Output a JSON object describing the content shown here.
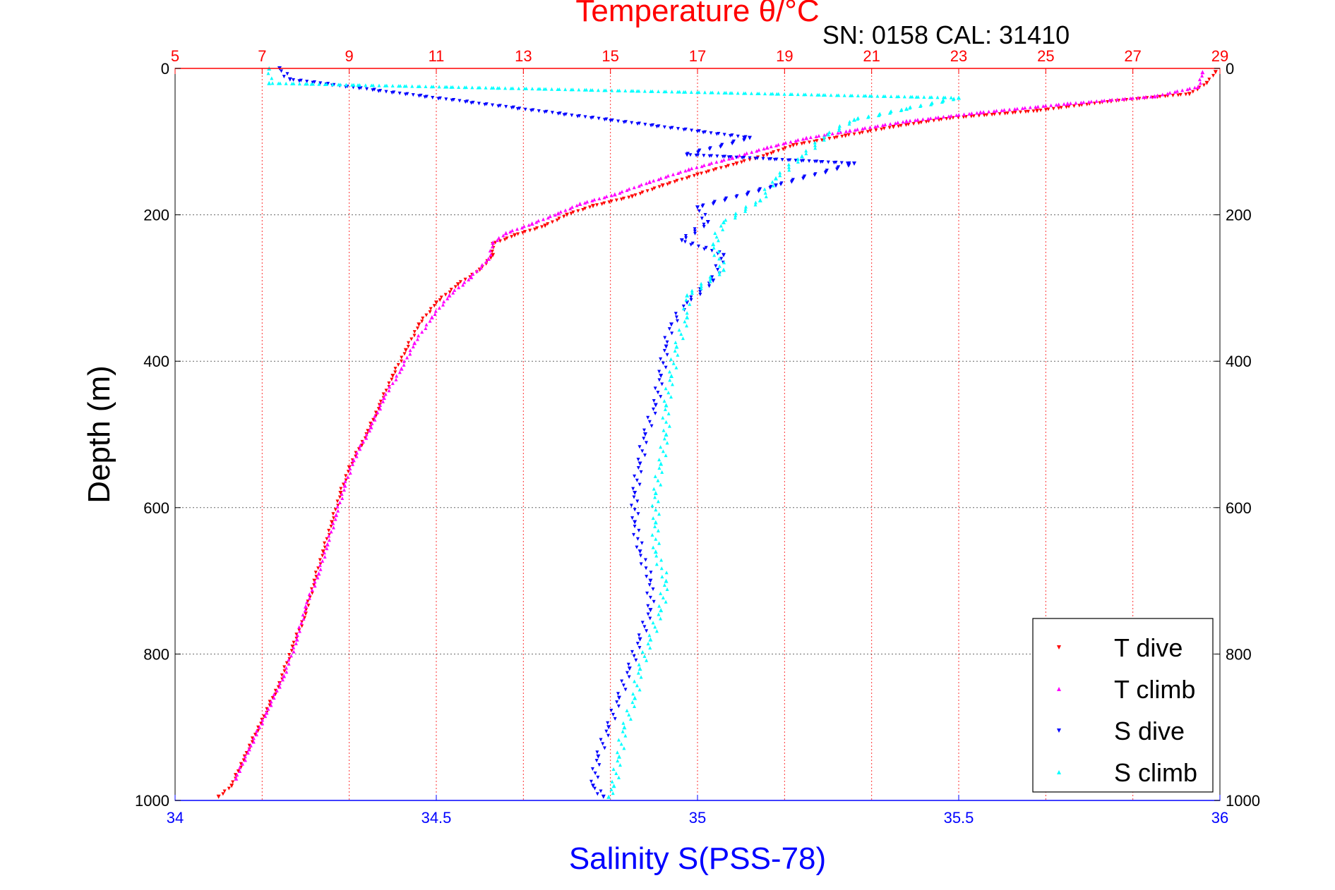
{
  "chart_data": {
    "type": "scatter",
    "title": "Temperature θ/°C",
    "subtitle": "SN: 0158  CAL: 31410",
    "xlabel_bottom": "Salinity S(PSS-78)",
    "xlabel_top": "Temperature θ/°C",
    "ylabel": "Depth (m)",
    "salinity_lim": [
      34,
      36
    ],
    "temperature_lim": [
      5,
      29
    ],
    "depth_lim": [
      0,
      1000
    ],
    "y_reversed": true,
    "grid": true,
    "legend_position": "bottom-right",
    "salinity_ticks": [
      "34",
      "34.5",
      "35",
      "35.5",
      "36"
    ],
    "temperature_ticks": [
      "5",
      "7",
      "9",
      "11",
      "13",
      "15",
      "17",
      "19",
      "21",
      "23",
      "25",
      "27",
      "29"
    ],
    "depth_ticks": [
      "0",
      "200",
      "400",
      "600",
      "800",
      "1000"
    ],
    "colors": {
      "temperature_axis": "#ff0000",
      "salinity_axis": "#0000ff",
      "T_dive": "#ff0000",
      "T_climb": "#ff00ff",
      "S_dive": "#0000ff",
      "S_climb": "#00ffff"
    },
    "series": [
      {
        "name": "T dive",
        "axis": "temperature",
        "marker": "triangle-down",
        "points": [
          [
            28.9,
            5
          ],
          [
            28.7,
            20
          ],
          [
            28.3,
            35
          ],
          [
            26.5,
            45
          ],
          [
            24.8,
            58
          ],
          [
            22.8,
            68
          ],
          [
            21.5,
            80
          ],
          [
            20.4,
            92
          ],
          [
            19.2,
            105
          ],
          [
            18.6,
            118
          ],
          [
            17.9,
            130
          ],
          [
            17.0,
            145
          ],
          [
            16.2,
            160
          ],
          [
            15.5,
            175
          ],
          [
            14.6,
            188
          ],
          [
            14.0,
            200
          ],
          [
            13.5,
            215
          ],
          [
            12.8,
            228
          ],
          [
            12.3,
            240
          ],
          [
            12.3,
            255
          ],
          [
            12.0,
            275
          ],
          [
            11.5,
            295
          ],
          [
            11.0,
            320
          ],
          [
            10.6,
            350
          ],
          [
            10.3,
            385
          ],
          [
            10.0,
            420
          ],
          [
            9.7,
            460
          ],
          [
            9.4,
            500
          ],
          [
            9.0,
            545
          ],
          [
            8.8,
            580
          ],
          [
            8.6,
            620
          ],
          [
            8.4,
            660
          ],
          [
            8.2,
            700
          ],
          [
            8.0,
            745
          ],
          [
            7.7,
            790
          ],
          [
            7.4,
            840
          ],
          [
            7.0,
            890
          ],
          [
            6.6,
            940
          ],
          [
            6.3,
            980
          ],
          [
            6.0,
            995
          ]
        ]
      },
      {
        "name": "T climb",
        "axis": "temperature",
        "marker": "triangle-up",
        "points": [
          [
            28.6,
            5
          ],
          [
            28.5,
            25
          ],
          [
            27.5,
            38
          ],
          [
            25.5,
            48
          ],
          [
            23.5,
            60
          ],
          [
            21.8,
            72
          ],
          [
            20.5,
            85
          ],
          [
            19.5,
            95
          ],
          [
            18.6,
            108
          ],
          [
            17.8,
            122
          ],
          [
            16.8,
            138
          ],
          [
            15.9,
            155
          ],
          [
            15.1,
            172
          ],
          [
            14.3,
            185
          ],
          [
            13.8,
            198
          ],
          [
            13.2,
            212
          ],
          [
            12.6,
            225
          ],
          [
            12.3,
            238
          ],
          [
            12.2,
            260
          ],
          [
            11.8,
            285
          ],
          [
            11.3,
            310
          ],
          [
            10.9,
            340
          ],
          [
            10.5,
            375
          ],
          [
            10.2,
            410
          ],
          [
            9.8,
            450
          ],
          [
            9.5,
            490
          ],
          [
            9.1,
            535
          ],
          [
            8.9,
            570
          ],
          [
            8.7,
            610
          ],
          [
            8.5,
            650
          ],
          [
            8.3,
            690
          ],
          [
            8.0,
            735
          ],
          [
            7.8,
            780
          ],
          [
            7.5,
            830
          ],
          [
            7.1,
            880
          ],
          [
            6.7,
            930
          ],
          [
            6.4,
            970
          ]
        ]
      },
      {
        "name": "S dive",
        "axis": "salinity",
        "marker": "triangle-down",
        "points": [
          [
            34.2,
            0
          ],
          [
            34.22,
            15
          ],
          [
            35.1,
            95
          ],
          [
            34.98,
            118
          ],
          [
            35.3,
            130
          ],
          [
            35.15,
            160
          ],
          [
            35.0,
            190
          ],
          [
            35.02,
            210
          ],
          [
            34.97,
            235
          ],
          [
            35.05,
            255
          ],
          [
            35.03,
            290
          ],
          [
            34.98,
            320
          ],
          [
            34.95,
            350
          ],
          [
            34.94,
            380
          ],
          [
            34.93,
            420
          ],
          [
            34.92,
            460
          ],
          [
            34.9,
            500
          ],
          [
            34.89,
            540
          ],
          [
            34.88,
            580
          ],
          [
            34.88,
            620
          ],
          [
            34.89,
            660
          ],
          [
            34.91,
            700
          ],
          [
            34.91,
            740
          ],
          [
            34.89,
            780
          ],
          [
            34.87,
            820
          ],
          [
            34.85,
            860
          ],
          [
            34.83,
            900
          ],
          [
            34.81,
            940
          ],
          [
            34.8,
            980
          ],
          [
            34.82,
            995
          ]
        ]
      },
      {
        "name": "S climb",
        "axis": "salinity",
        "marker": "triangle-up",
        "points": [
          [
            34.18,
            0
          ],
          [
            34.18,
            20
          ],
          [
            35.5,
            40
          ],
          [
            35.4,
            55
          ],
          [
            35.3,
            70
          ],
          [
            35.25,
            90
          ],
          [
            35.2,
            120
          ],
          [
            35.15,
            150
          ],
          [
            35.12,
            180
          ],
          [
            35.05,
            210
          ],
          [
            35.03,
            240
          ],
          [
            35.05,
            275
          ],
          [
            34.98,
            310
          ],
          [
            34.98,
            340
          ],
          [
            34.96,
            380
          ],
          [
            34.95,
            420
          ],
          [
            34.94,
            460
          ],
          [
            34.94,
            500
          ],
          [
            34.93,
            540
          ],
          [
            34.92,
            580
          ],
          [
            34.92,
            620
          ],
          [
            34.92,
            660
          ],
          [
            34.94,
            700
          ],
          [
            34.93,
            740
          ],
          [
            34.91,
            780
          ],
          [
            34.89,
            820
          ],
          [
            34.88,
            860
          ],
          [
            34.86,
            900
          ],
          [
            34.85,
            940
          ],
          [
            34.84,
            980
          ],
          [
            34.83,
            995
          ]
        ]
      }
    ]
  }
}
